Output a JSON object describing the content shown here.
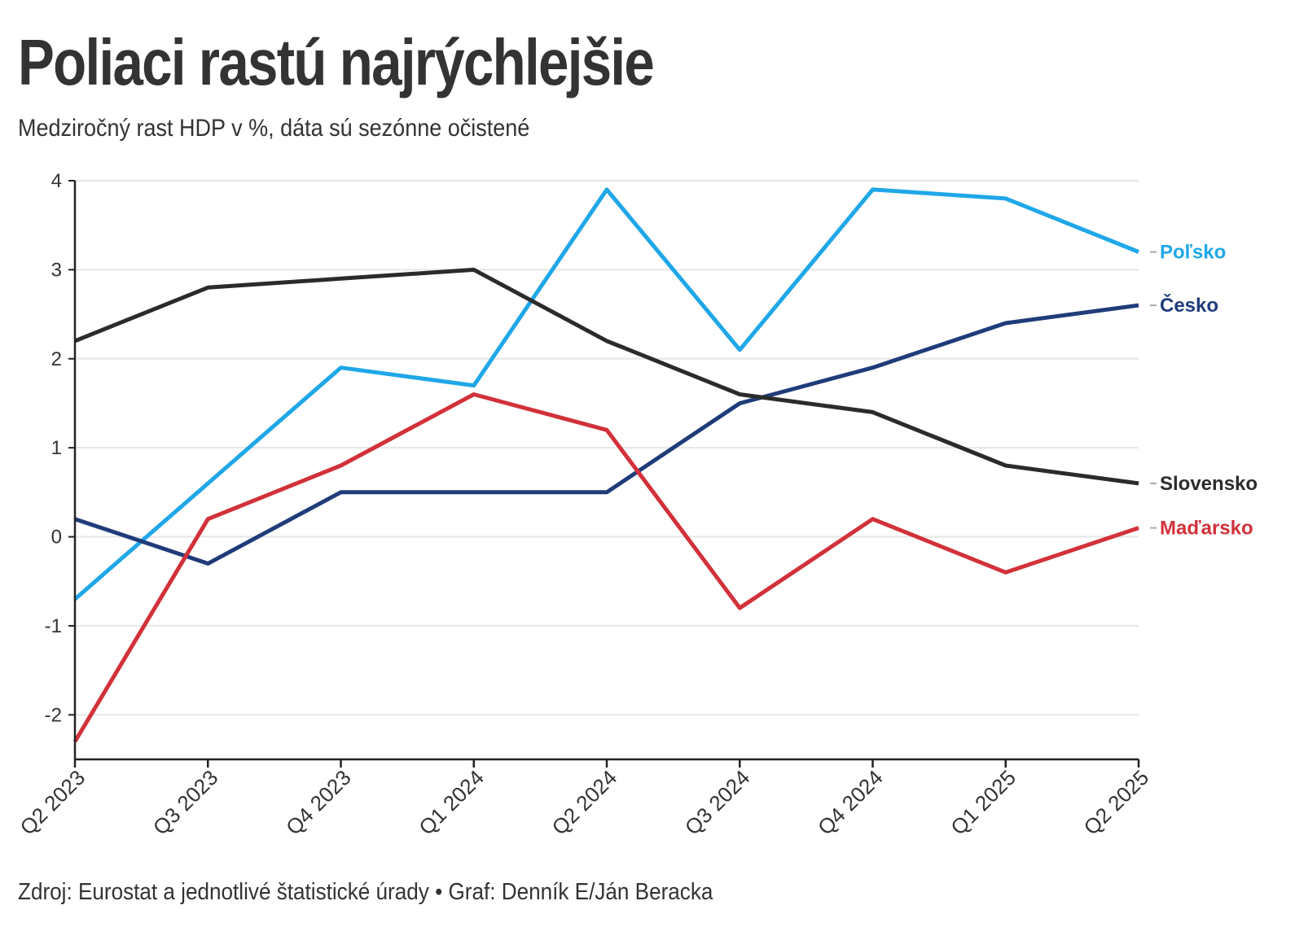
{
  "title": "Poliaci rastú najrýchlejšie",
  "subtitle": "Medziročný rast HDP v %, dáta sú sezónne očistené",
  "footer": "Zdroj: Eurostat a jednotlivé štatistické úrady • Graf: Denník E/Ján Beracka",
  "chart_data": {
    "type": "line",
    "title": "Poliaci rastú najrýchlejšie",
    "subtitle": "Medziročný rast HDP v %, dáta sú sezónne očistené",
    "xlabel": "",
    "ylabel": "",
    "categories": [
      "Q2 2023",
      "Q3 2023",
      "Q4 2023",
      "Q1 2024",
      "Q2 2024",
      "Q3 2024",
      "Q4 2024",
      "Q1 2025",
      "Q2 2025"
    ],
    "ylim": [
      -2.5,
      4
    ],
    "yticks": [
      -2,
      -1,
      0,
      1,
      2,
      3,
      4
    ],
    "grid": true,
    "legend": "direct labels at right end of lines",
    "series": [
      {
        "name": "Poľsko",
        "color": "#1fa7e8",
        "values": [
          -0.7,
          0.6,
          1.9,
          1.7,
          3.9,
          2.1,
          3.9,
          3.8,
          3.2
        ]
      },
      {
        "name": "Česko",
        "color": "#1f3c7a",
        "values": [
          0.2,
          -0.3,
          0.5,
          0.5,
          0.5,
          1.5,
          1.9,
          2.4,
          2.6
        ]
      },
      {
        "name": "Slovensko",
        "color": "#2b2b2b",
        "values": [
          2.2,
          2.8,
          2.9,
          3.0,
          2.2,
          1.6,
          1.4,
          0.8,
          0.6
        ]
      },
      {
        "name": "Maďarsko",
        "color": "#d2313a",
        "values": [
          -2.3,
          0.2,
          0.8,
          1.6,
          1.2,
          -0.8,
          0.2,
          -0.4,
          0.1
        ]
      }
    ]
  }
}
